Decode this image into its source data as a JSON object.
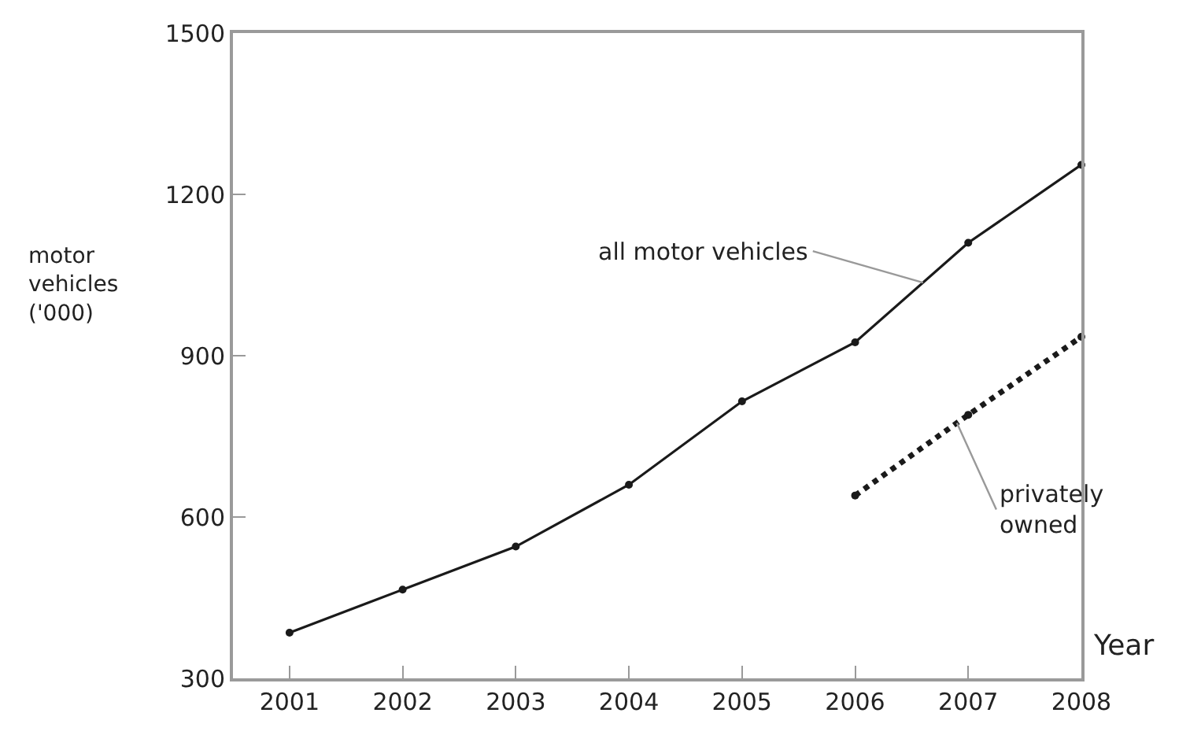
{
  "chart_data": {
    "type": "line",
    "xlabel": "Year",
    "ylabel": "motor\nvehicles\n('000)",
    "x": [
      2001,
      2002,
      2003,
      2004,
      2005,
      2006,
      2007,
      2008
    ],
    "series": [
      {
        "color": "#1a1a1a",
        "values": [
          385,
          465,
          545,
          660,
          815,
          925,
          1110,
          1255
        ],
        "line_style": "solid",
        "marker": "circle"
      },
      {
        "color": "#1a1a1a",
        "values": [
          null,
          null,
          null,
          null,
          null,
          640,
          790,
          935
        ],
        "line_style": "dotted",
        "marker": "circle"
      }
    ],
    "annotations": [
      {
        "text": "all motor vehicles",
        "x": 2006.6,
        "y": 1036
      },
      {
        "text": "privately\nowned",
        "x": 2006.9,
        "y": 775
      }
    ],
    "xlim": [
      2000.5,
      2008
    ],
    "xticks": [
      2001,
      2002,
      2003,
      2004,
      2005,
      2006,
      2007,
      2008
    ],
    "ylim": [
      300,
      1500
    ],
    "yticks": [
      300,
      600,
      900,
      1200,
      1500
    ]
  }
}
